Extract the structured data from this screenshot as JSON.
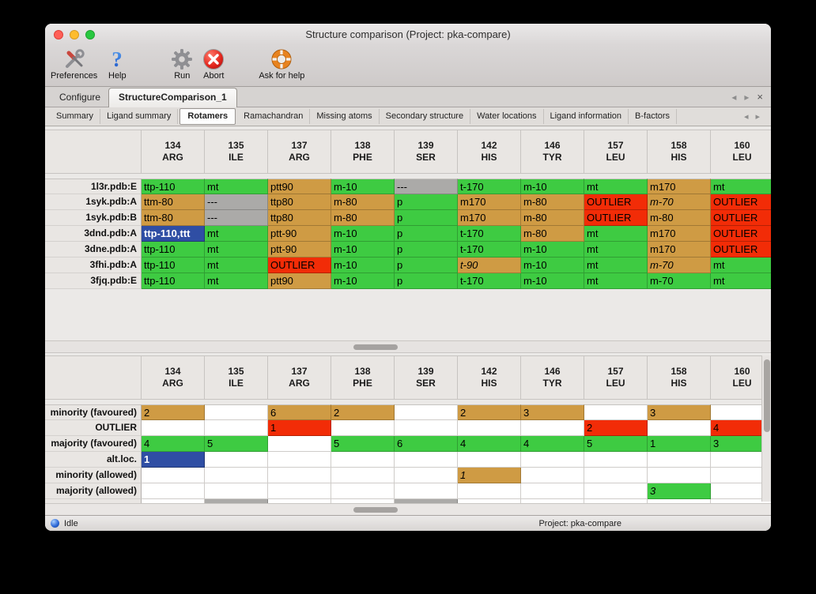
{
  "window": {
    "title": "Structure comparison (Project: pka-compare)"
  },
  "toolbar": {
    "items": [
      {
        "label": "Preferences",
        "icon": "tools-icon"
      },
      {
        "label": "Help",
        "icon": "help-icon"
      },
      {
        "label": "Run",
        "icon": "gear-icon"
      },
      {
        "label": "Abort",
        "icon": "abort-icon"
      },
      {
        "label": "Ask for help",
        "icon": "lifebuoy-icon"
      }
    ]
  },
  "tabs": {
    "items": [
      {
        "label": "Configure",
        "active": false
      },
      {
        "label": "StructureComparison_1",
        "active": true
      }
    ]
  },
  "icons": {
    "prev": "◂",
    "next": "▸",
    "close": "×"
  },
  "subtabs": {
    "active_index": 2,
    "items": [
      "Summary",
      "Ligand summary",
      "Rotamers",
      "Ramachandran",
      "Missing atoms",
      "Secondary structure",
      "Water locations",
      "Ligand information",
      "B-factors"
    ]
  },
  "columns": [
    {
      "number": "134",
      "residue": "ARG"
    },
    {
      "number": "135",
      "residue": "ILE"
    },
    {
      "number": "137",
      "residue": "ARG"
    },
    {
      "number": "138",
      "residue": "PHE"
    },
    {
      "number": "139",
      "residue": "SER"
    },
    {
      "number": "142",
      "residue": "HIS"
    },
    {
      "number": "146",
      "residue": "TYR"
    },
    {
      "number": "157",
      "residue": "LEU"
    },
    {
      "number": "158",
      "residue": "HIS"
    },
    {
      "number": "160",
      "residue": "LEU"
    }
  ],
  "top_table": {
    "rows": [
      {
        "label": "1l3r.pdb:E",
        "cells": [
          {
            "t": "ttp-110",
            "c": "green"
          },
          {
            "t": "mt",
            "c": "green"
          },
          {
            "t": "ptt90",
            "c": "tan"
          },
          {
            "t": "m-10",
            "c": "green"
          },
          {
            "t": "---",
            "c": "gray"
          },
          {
            "t": "t-170",
            "c": "green"
          },
          {
            "t": "m-10",
            "c": "green"
          },
          {
            "t": "mt",
            "c": "green"
          },
          {
            "t": "m170",
            "c": "tan"
          },
          {
            "t": "mt",
            "c": "green"
          }
        ]
      },
      {
        "label": "1syk.pdb:A",
        "cells": [
          {
            "t": "ttm-80",
            "c": "tan"
          },
          {
            "t": "---",
            "c": "gray"
          },
          {
            "t": "ttp80",
            "c": "tan"
          },
          {
            "t": "m-80",
            "c": "tan"
          },
          {
            "t": "p",
            "c": "green"
          },
          {
            "t": "m170",
            "c": "tan"
          },
          {
            "t": "m-80",
            "c": "tan"
          },
          {
            "t": "OUTLIER",
            "c": "red"
          },
          {
            "t": "m-70",
            "c": "tan",
            "i": true
          },
          {
            "t": "OUTLIER",
            "c": "red"
          }
        ]
      },
      {
        "label": "1syk.pdb:B",
        "cells": [
          {
            "t": "ttm-80",
            "c": "tan"
          },
          {
            "t": "---",
            "c": "gray"
          },
          {
            "t": "ttp80",
            "c": "tan"
          },
          {
            "t": "m-80",
            "c": "tan"
          },
          {
            "t": "p",
            "c": "green"
          },
          {
            "t": "m170",
            "c": "tan"
          },
          {
            "t": "m-80",
            "c": "tan"
          },
          {
            "t": "OUTLIER",
            "c": "red"
          },
          {
            "t": "m-80",
            "c": "tan"
          },
          {
            "t": "OUTLIER",
            "c": "red"
          }
        ]
      },
      {
        "label": "3dnd.pdb:A",
        "cells": [
          {
            "t": "ttp-110,ttt",
            "c": "blue"
          },
          {
            "t": "mt",
            "c": "green"
          },
          {
            "t": "ptt-90",
            "c": "tan"
          },
          {
            "t": "m-10",
            "c": "green"
          },
          {
            "t": "p",
            "c": "green"
          },
          {
            "t": "t-170",
            "c": "green"
          },
          {
            "t": "m-80",
            "c": "tan"
          },
          {
            "t": "mt",
            "c": "green"
          },
          {
            "t": "m170",
            "c": "tan"
          },
          {
            "t": "OUTLIER",
            "c": "red"
          }
        ]
      },
      {
        "label": "3dne.pdb:A",
        "cells": [
          {
            "t": "ttp-110",
            "c": "green"
          },
          {
            "t": "mt",
            "c": "green"
          },
          {
            "t": "ptt-90",
            "c": "tan"
          },
          {
            "t": "m-10",
            "c": "green"
          },
          {
            "t": "p",
            "c": "green"
          },
          {
            "t": "t-170",
            "c": "green"
          },
          {
            "t": "m-10",
            "c": "green"
          },
          {
            "t": "mt",
            "c": "green"
          },
          {
            "t": "m170",
            "c": "tan"
          },
          {
            "t": "OUTLIER",
            "c": "red"
          }
        ]
      },
      {
        "label": "3fhi.pdb:A",
        "cells": [
          {
            "t": "ttp-110",
            "c": "green"
          },
          {
            "t": "mt",
            "c": "green"
          },
          {
            "t": "OUTLIER",
            "c": "red"
          },
          {
            "t": "m-10",
            "c": "green"
          },
          {
            "t": "p",
            "c": "green"
          },
          {
            "t": "t-90",
            "c": "tan",
            "i": true
          },
          {
            "t": "m-10",
            "c": "green"
          },
          {
            "t": "mt",
            "c": "green"
          },
          {
            "t": "m-70",
            "c": "tan",
            "i": true
          },
          {
            "t": "mt",
            "c": "green"
          }
        ]
      },
      {
        "label": "3fjq.pdb:E",
        "cells": [
          {
            "t": "ttp-110",
            "c": "green"
          },
          {
            "t": "mt",
            "c": "green"
          },
          {
            "t": "ptt90",
            "c": "tan"
          },
          {
            "t": "m-10",
            "c": "green"
          },
          {
            "t": "p",
            "c": "green"
          },
          {
            "t": "t-170",
            "c": "green"
          },
          {
            "t": "m-10",
            "c": "green"
          },
          {
            "t": "mt",
            "c": "green"
          },
          {
            "t": "m-70",
            "c": "green"
          },
          {
            "t": "mt",
            "c": "green"
          }
        ]
      }
    ]
  },
  "bottom_table": {
    "rows": [
      {
        "label": "minority (favoured)",
        "cells": [
          {
            "t": "2",
            "c": "tan"
          },
          {
            "t": "",
            "c": ""
          },
          {
            "t": "6",
            "c": "tan"
          },
          {
            "t": "2",
            "c": "tan"
          },
          {
            "t": "",
            "c": ""
          },
          {
            "t": "2",
            "c": "tan"
          },
          {
            "t": "3",
            "c": "tan"
          },
          {
            "t": "",
            "c": ""
          },
          {
            "t": "3",
            "c": "tan"
          },
          {
            "t": "",
            "c": ""
          }
        ]
      },
      {
        "label": "OUTLIER",
        "cells": [
          {
            "t": "",
            "c": ""
          },
          {
            "t": "",
            "c": ""
          },
          {
            "t": "1",
            "c": "red"
          },
          {
            "t": "",
            "c": ""
          },
          {
            "t": "",
            "c": ""
          },
          {
            "t": "",
            "c": ""
          },
          {
            "t": "",
            "c": ""
          },
          {
            "t": "2",
            "c": "red"
          },
          {
            "t": "",
            "c": ""
          },
          {
            "t": "4",
            "c": "red"
          }
        ]
      },
      {
        "label": "majority (favoured)",
        "cells": [
          {
            "t": "4",
            "c": "green"
          },
          {
            "t": "5",
            "c": "green"
          },
          {
            "t": "",
            "c": ""
          },
          {
            "t": "5",
            "c": "green"
          },
          {
            "t": "6",
            "c": "green"
          },
          {
            "t": "4",
            "c": "green"
          },
          {
            "t": "4",
            "c": "green"
          },
          {
            "t": "5",
            "c": "green"
          },
          {
            "t": "1",
            "c": "green"
          },
          {
            "t": "3",
            "c": "green"
          }
        ]
      },
      {
        "label": "alt.loc.",
        "cells": [
          {
            "t": "1",
            "c": "blue"
          },
          {
            "t": "",
            "c": ""
          },
          {
            "t": "",
            "c": ""
          },
          {
            "t": "",
            "c": ""
          },
          {
            "t": "",
            "c": ""
          },
          {
            "t": "",
            "c": ""
          },
          {
            "t": "",
            "c": ""
          },
          {
            "t": "",
            "c": ""
          },
          {
            "t": "",
            "c": ""
          },
          {
            "t": "",
            "c": ""
          }
        ]
      },
      {
        "label": "minority (allowed)",
        "cells": [
          {
            "t": "",
            "c": ""
          },
          {
            "t": "",
            "c": ""
          },
          {
            "t": "",
            "c": ""
          },
          {
            "t": "",
            "c": ""
          },
          {
            "t": "",
            "c": ""
          },
          {
            "t": "1",
            "c": "tan",
            "i": true
          },
          {
            "t": "",
            "c": ""
          },
          {
            "t": "",
            "c": ""
          },
          {
            "t": "",
            "c": ""
          },
          {
            "t": "",
            "c": ""
          }
        ]
      },
      {
        "label": "majority (allowed)",
        "cells": [
          {
            "t": "",
            "c": ""
          },
          {
            "t": "",
            "c": ""
          },
          {
            "t": "",
            "c": ""
          },
          {
            "t": "",
            "c": ""
          },
          {
            "t": "",
            "c": ""
          },
          {
            "t": "",
            "c": ""
          },
          {
            "t": "",
            "c": ""
          },
          {
            "t": "",
            "c": ""
          },
          {
            "t": "3",
            "c": "green",
            "i": true
          },
          {
            "t": "",
            "c": ""
          }
        ]
      }
    ],
    "clipped_row": {
      "cells": [
        "",
        "gray",
        "",
        "",
        "gray",
        "",
        "",
        "",
        "",
        ""
      ]
    }
  },
  "statusbar": {
    "status": "Idle",
    "project": "Project: pka-compare"
  },
  "colors": {
    "green": "#3ecb42",
    "tan": "#cf9b44",
    "red": "#f22c07",
    "gray": "#abaaa8",
    "blue": "#2f4ea4"
  }
}
